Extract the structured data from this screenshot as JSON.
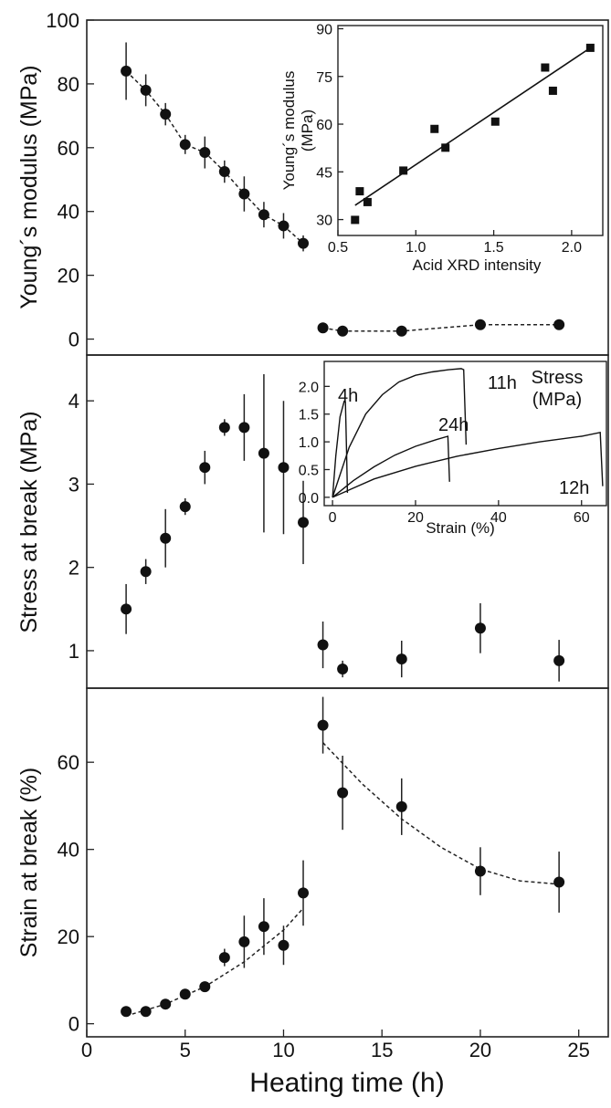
{
  "chart_data": [
    {
      "type": "scatter",
      "panel": "top",
      "ylabel": "Young´s modulus (MPa)",
      "ylim": [
        -5,
        100
      ],
      "yticks": [
        0,
        20,
        40,
        60,
        80,
        100
      ],
      "xlim": [
        0,
        26.5
      ],
      "series": [
        {
          "x": [
            2,
            3,
            4,
            5,
            6,
            7,
            8,
            9,
            10,
            11
          ],
          "y": [
            84,
            78,
            70.5,
            61,
            58.5,
            52.5,
            45.5,
            39,
            35.5,
            30
          ],
          "err": [
            9,
            5,
            3.5,
            3,
            5,
            3.5,
            5.5,
            4,
            4,
            2.5
          ],
          "fit": "dashed"
        },
        {
          "x": [
            12,
            13,
            16,
            20,
            24
          ],
          "y": [
            3.5,
            2.5,
            2.5,
            4.5,
            4.5
          ],
          "err": [
            1,
            1,
            1,
            1,
            1
          ],
          "fit": "dashed"
        }
      ]
    },
    {
      "type": "scatter",
      "panel": "top-inset",
      "xlabel": "Acid XRD intensity",
      "ylabel": "Young´s modulus (MPa)",
      "xlim": [
        0.5,
        2.2
      ],
      "ylim": [
        25,
        91
      ],
      "xticks": [
        "0.5",
        "1.0",
        "1.5",
        "2.0"
      ],
      "yticks": [
        30,
        45,
        60,
        75,
        90
      ],
      "x": [
        0.61,
        0.64,
        0.69,
        0.92,
        1.12,
        1.19,
        1.51,
        1.83,
        1.88,
        2.12
      ],
      "y": [
        29.9,
        38.9,
        35.5,
        45.4,
        58.5,
        52.6,
        60.8,
        77.8,
        70.5,
        84
      ],
      "fit_line": [
        [
          0.61,
          34.5
        ],
        [
          2.12,
          84
        ]
      ]
    },
    {
      "type": "scatter",
      "panel": "middle",
      "ylabel": "Stress at break (MPa)",
      "ylim": [
        0.55,
        4.55
      ],
      "yticks": [
        1,
        2,
        3,
        4
      ],
      "x": [
        2,
        3,
        4,
        5,
        6,
        7,
        8,
        9,
        10,
        11,
        12,
        13,
        16,
        20,
        24
      ],
      "y": [
        1.5,
        1.95,
        2.35,
        2.73,
        3.2,
        3.68,
        3.68,
        3.37,
        3.2,
        2.54,
        1.07,
        0.78,
        0.9,
        1.27,
        0.88
      ],
      "err": [
        0.3,
        0.15,
        0.35,
        0.1,
        0.2,
        0.1,
        0.4,
        0.95,
        0.8,
        0.5,
        0.28,
        0.1,
        0.22,
        0.3,
        0.25
      ]
    },
    {
      "type": "line",
      "panel": "middle-inset",
      "xlabel": "Strain (%)",
      "annotation": "Stress\n(MPa)",
      "xlim": [
        -2,
        66
      ],
      "ylim": [
        -0.15,
        2.45
      ],
      "xticks": [
        0,
        20,
        40,
        60
      ],
      "yticks": [
        "0.0",
        "0.5",
        "1.0",
        "1.5",
        "2.0"
      ],
      "series": [
        {
          "name": "4h",
          "x": [
            0,
            0.8,
            1.8,
            2.8,
            3.1,
            3.4,
            3.6
          ],
          "y": [
            0,
            0.75,
            1.45,
            1.73,
            1.72,
            0.8,
            0.08
          ]
        },
        {
          "name": "11h",
          "x": [
            0,
            2,
            4,
            8,
            12,
            16,
            20,
            24,
            28,
            31,
            31.6,
            32.2
          ],
          "y": [
            0,
            0.45,
            0.9,
            1.5,
            1.85,
            2.08,
            2.2,
            2.26,
            2.3,
            2.32,
            2.3,
            0.95
          ]
        },
        {
          "name": "24h",
          "x": [
            0,
            5,
            10,
            15,
            20,
            25,
            27.8,
            28.2
          ],
          "y": [
            0,
            0.3,
            0.55,
            0.76,
            0.92,
            1.04,
            1.1,
            0.28
          ]
        },
        {
          "name": "12h",
          "x": [
            0,
            10,
            20,
            30,
            40,
            50,
            60,
            64.5,
            65.1
          ],
          "y": [
            0,
            0.33,
            0.56,
            0.74,
            0.88,
            1.0,
            1.1,
            1.17,
            0.2
          ]
        }
      ]
    },
    {
      "type": "scatter",
      "panel": "bottom",
      "ylabel": "Strain at break (%)",
      "xlabel": "Heating time (h)",
      "ylim": [
        -3,
        77
      ],
      "yticks": [
        0,
        20,
        40,
        60
      ],
      "xlim": [
        0,
        26.5
      ],
      "xticks": [
        0,
        5,
        10,
        15,
        20,
        25
      ],
      "series": [
        {
          "x": [
            2,
            3,
            4,
            5,
            6,
            7,
            8,
            9,
            10,
            11
          ],
          "y": [
            2.8,
            2.8,
            4.5,
            6.8,
            8.5,
            15.2,
            18.8,
            22.3,
            18,
            30
          ],
          "err": [
            1,
            1,
            1,
            1,
            1,
            2,
            6,
            6.5,
            4.5,
            7.5
          ],
          "fit": [
            [
              2,
              1.8
            ],
            [
              4,
              4.5
            ],
            [
              6,
              8.5
            ],
            [
              8,
              14.2
            ],
            [
              10,
              21.5
            ],
            [
              11,
              26.5
            ]
          ]
        },
        {
          "x": [
            12,
            13,
            16,
            20,
            24
          ],
          "y": [
            68.5,
            53,
            49.8,
            35,
            32.5
          ],
          "err": [
            6.5,
            8.5,
            6.5,
            5.5,
            7
          ],
          "fit": [
            [
              12,
              64.5
            ],
            [
              14,
              55
            ],
            [
              16,
              47
            ],
            [
              18,
              40.5
            ],
            [
              20,
              35.5
            ],
            [
              22,
              32.8
            ],
            [
              24,
              32
            ]
          ]
        }
      ]
    }
  ]
}
